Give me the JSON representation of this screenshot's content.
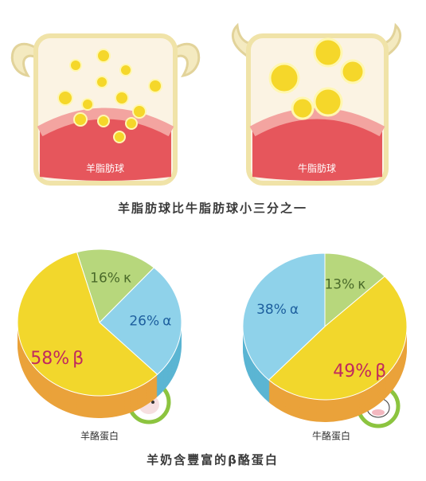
{
  "illustrations": [
    {
      "label": "羊脂肪球"
    },
    {
      "label": "牛脂肪球"
    }
  ],
  "illustration_caption": "羊脂肪球比牛脂肪球小三分之一",
  "chart_data": [
    {
      "type": "pie",
      "title": "羊酪蛋白",
      "categories": [
        "κ",
        "α",
        "β"
      ],
      "values": [
        16,
        26,
        58
      ],
      "value_labels": [
        "16%",
        "26%",
        "58%"
      ],
      "colors": [
        "#b7d77c",
        "#8fd2ea",
        "#f2d72c"
      ],
      "side_colors": [
        "#8fb357",
        "#5bb5d3",
        "#eaa23a"
      ]
    },
    {
      "type": "pie",
      "title": "牛酪蛋白",
      "categories": [
        "κ",
        "β",
        "α"
      ],
      "values": [
        13,
        49,
        38
      ],
      "value_labels": [
        "13%",
        "49%",
        "38%"
      ],
      "colors": [
        "#b7d77c",
        "#f2d72c",
        "#8fd2ea"
      ],
      "side_colors": [
        "#8fb357",
        "#eaa23a",
        "#5bb5d3"
      ]
    }
  ],
  "chart_caption": "羊奶含豐富的β酪蛋白"
}
